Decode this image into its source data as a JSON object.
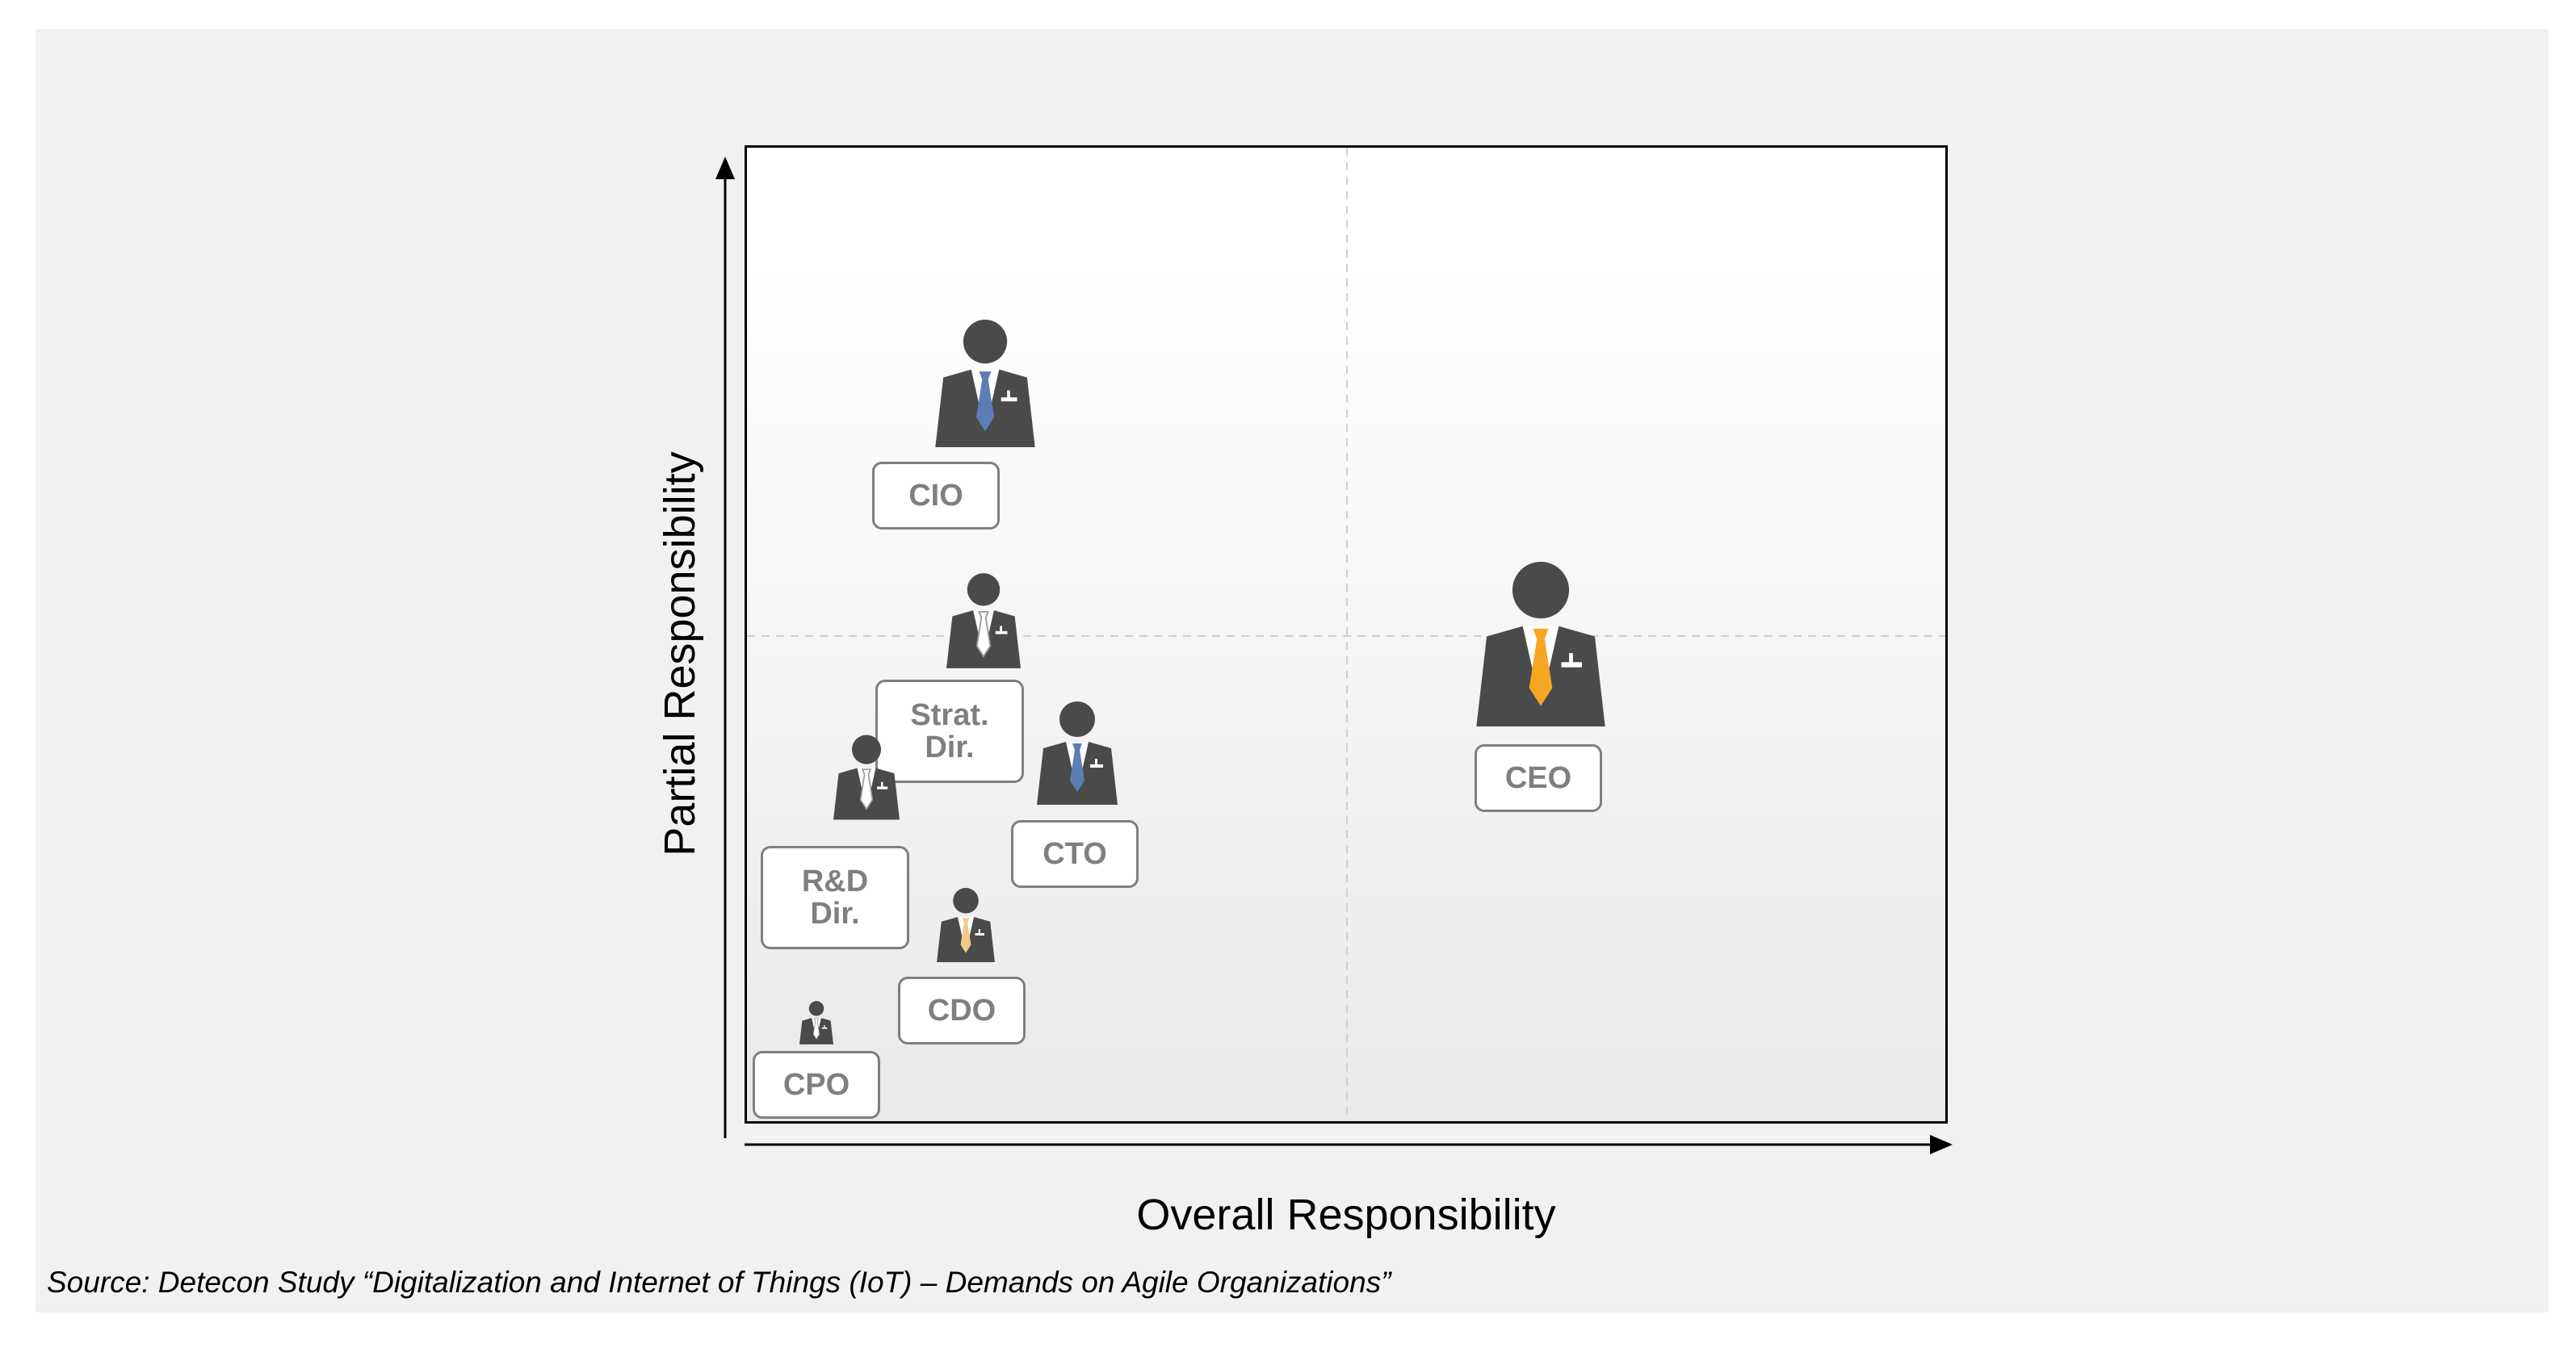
{
  "axes": {
    "x_title": "Overall Responsibility",
    "y_title": "Partial Responsibility"
  },
  "roles": {
    "cio": {
      "label": "CIO",
      "tie_color": "#5b7fb5"
    },
    "strat_dir": {
      "label": "Strat.\nDir.",
      "tie_color": "#ffffff"
    },
    "rd_dir": {
      "label": "R&D\nDir.",
      "tie_color": "#ffffff"
    },
    "cto": {
      "label": "CTO",
      "tie_color": "#5b7fb5"
    },
    "cdo": {
      "label": "CDO",
      "tie_color": "#f3c98a"
    },
    "cpo": {
      "label": "CPO",
      "tie_color": "#ffffff"
    },
    "ceo": {
      "label": "CEO",
      "tie_color": "#f5a623"
    }
  },
  "source": "Source: Detecon Study “Digitalization and Internet of Things (IoT) – Demands on Agile Organizations”",
  "colors": {
    "person": "#4a4a4a",
    "label_border": "#7f7f7f",
    "background": "#f1f1f1"
  }
}
